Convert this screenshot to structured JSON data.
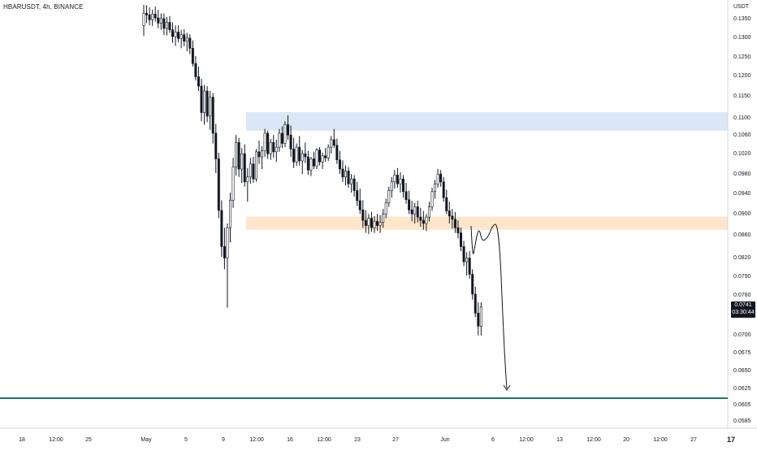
{
  "symbol": "HBARUSDT, 4h, BINANCE",
  "currency": "USDT",
  "price_badge": {
    "price": "0.0741",
    "countdown": "03:30:44"
  },
  "logo_text": "17",
  "colors": {
    "candle": "#131722",
    "resistance_zone": "#dbe7f6",
    "support_zone": "#fde6cb",
    "level_line": "#1a7a64",
    "drawing": "#131722",
    "axis_text": "#131722",
    "axis_line": "#d1d4dc"
  },
  "chart_data": {
    "type": "candlestick",
    "y_tick_labels": [
      "0.1350",
      "0.1300",
      "0.1250",
      "0.1200",
      "0.1150",
      "0.1100",
      "0.1060",
      "0.1020",
      "0.0980",
      "0.0940",
      "0.0900",
      "0.0860",
      "0.0820",
      "0.0790",
      "0.0760",
      "0.0730",
      "0.0700",
      "0.0675",
      "0.0650",
      "0.0625",
      "0.0605",
      "0.0585"
    ],
    "x_tick_labels": [
      "18",
      "12:00",
      "25",
      "May",
      "5",
      "9",
      "12:00",
      "16",
      "12:00",
      "23",
      "27",
      "Jun",
      "6",
      "12:00",
      "13",
      "12:00",
      "20",
      "12:00",
      "27"
    ],
    "zones": [
      {
        "name": "resistance",
        "from": 0.1068,
        "to": 0.1111
      },
      {
        "name": "support",
        "from": 0.0868,
        "to": 0.0893
      }
    ],
    "horizontal_line": 0.0612,
    "series": [
      {
        "values": [
          [
            0.133,
            0.1385,
            0.1302,
            0.1362
          ],
          [
            0.1362,
            0.1384,
            0.1336,
            0.1358
          ],
          [
            0.1358,
            0.1378,
            0.133,
            0.1345
          ],
          [
            0.1345,
            0.1372,
            0.1328,
            0.136
          ],
          [
            0.136,
            0.138,
            0.134,
            0.135
          ],
          [
            0.135,
            0.1371,
            0.1322,
            0.1336
          ],
          [
            0.1336,
            0.1362,
            0.1318,
            0.1348
          ],
          [
            0.1348,
            0.1362,
            0.1304,
            0.1322
          ],
          [
            0.1322,
            0.1352,
            0.1303,
            0.1338
          ],
          [
            0.1338,
            0.1355,
            0.131,
            0.1318
          ],
          [
            0.1318,
            0.1338,
            0.1284,
            0.13
          ],
          [
            0.13,
            0.133,
            0.1276,
            0.1312
          ],
          [
            0.1312,
            0.133,
            0.1285,
            0.1295
          ],
          [
            0.1295,
            0.1318,
            0.127,
            0.1305
          ],
          [
            0.1305,
            0.132,
            0.1275,
            0.1288
          ],
          [
            0.1288,
            0.131,
            0.1262,
            0.1296
          ],
          [
            0.1296,
            0.1306,
            0.1255,
            0.127
          ],
          [
            0.127,
            0.129,
            0.1222,
            0.123
          ],
          [
            0.123,
            0.125,
            0.1186,
            0.1195
          ],
          [
            0.1195,
            0.1222,
            0.116,
            0.1172
          ],
          [
            0.1172,
            0.119,
            0.109,
            0.111
          ],
          [
            0.111,
            0.1175,
            0.1082,
            0.116
          ],
          [
            0.116,
            0.1172,
            0.1088,
            0.1102
          ],
          [
            0.1102,
            0.116,
            0.107,
            0.1145
          ],
          [
            0.1145,
            0.1155,
            0.104,
            0.1062
          ],
          [
            0.1062,
            0.1084,
            0.098,
            0.1008
          ],
          [
            0.1008,
            0.102,
            0.089,
            0.0905
          ],
          [
            0.0905,
            0.0925,
            0.082,
            0.0838
          ],
          [
            0.0838,
            0.0872,
            0.08,
            0.0818
          ],
          [
            0.0818,
            0.088,
            0.074,
            0.0872
          ],
          [
            0.0872,
            0.094,
            0.0845,
            0.0925
          ],
          [
            0.0925,
            0.101,
            0.091,
            0.0992
          ],
          [
            0.0992,
            0.1058,
            0.0975,
            0.1042
          ],
          [
            0.1042,
            0.1052,
            0.0972,
            0.0988
          ],
          [
            0.0988,
            0.103,
            0.096,
            0.1018
          ],
          [
            0.1018,
            0.1038,
            0.0952,
            0.0962
          ],
          [
            0.0962,
            0.099,
            0.0922,
            0.0972
          ],
          [
            0.0972,
            0.101,
            0.0958,
            0.0998
          ],
          [
            0.0998,
            0.1012,
            0.096,
            0.0968
          ],
          [
            0.0968,
            0.1028,
            0.0962,
            0.1022
          ],
          [
            0.1022,
            0.1046,
            0.0998,
            0.1012
          ],
          [
            0.1012,
            0.1034,
            0.0988,
            0.1024
          ],
          [
            0.1024,
            0.1072,
            0.1012,
            0.1062
          ],
          [
            0.1062,
            0.1068,
            0.1008,
            0.1018
          ],
          [
            0.1018,
            0.105,
            0.1006,
            0.1042
          ],
          [
            0.1042,
            0.1058,
            0.101,
            0.1022
          ],
          [
            0.1022,
            0.1048,
            0.1002,
            0.1032
          ],
          [
            0.1032,
            0.1072,
            0.1022,
            0.1062
          ],
          [
            0.1062,
            0.1078,
            0.103,
            0.104
          ],
          [
            0.104,
            0.109,
            0.1032,
            0.1082
          ],
          [
            0.1082,
            0.1104,
            0.1048,
            0.1058
          ],
          [
            0.1058,
            0.108,
            0.1012,
            0.1028
          ],
          [
            0.1028,
            0.1052,
            0.099,
            0.1002
          ],
          [
            0.1002,
            0.104,
            0.0994,
            0.1032
          ],
          [
            0.1032,
            0.1056,
            0.0995,
            0.1004
          ],
          [
            0.1004,
            0.1026,
            0.0978,
            0.1018
          ],
          [
            0.1018,
            0.1042,
            0.1,
            0.1012
          ],
          [
            0.1012,
            0.1024,
            0.0976,
            0.0986
          ],
          [
            0.0986,
            0.1012,
            0.0974,
            0.1008
          ],
          [
            0.1008,
            0.1022,
            0.0988,
            0.0994
          ],
          [
            0.0994,
            0.103,
            0.0988,
            0.1026
          ],
          [
            0.1026,
            0.1032,
            0.0995,
            0.1002
          ],
          [
            0.1002,
            0.102,
            0.0988,
            0.1014
          ],
          [
            0.1014,
            0.103,
            0.1002,
            0.101
          ],
          [
            0.101,
            0.1038,
            0.1004,
            0.1032
          ],
          [
            0.1032,
            0.1056,
            0.1018,
            0.1048
          ],
          [
            0.1048,
            0.1072,
            0.103,
            0.1036
          ],
          [
            0.1036,
            0.105,
            0.0998,
            0.1006
          ],
          [
            0.1006,
            0.1024,
            0.0978,
            0.0988
          ],
          [
            0.0988,
            0.1005,
            0.0962,
            0.0972
          ],
          [
            0.0972,
            0.0995,
            0.0955,
            0.0984
          ],
          [
            0.0984,
            0.0992,
            0.095,
            0.0958
          ],
          [
            0.0958,
            0.0978,
            0.094,
            0.0968
          ],
          [
            0.0968,
            0.0976,
            0.0932,
            0.0944
          ],
          [
            0.0944,
            0.0962,
            0.0914,
            0.0924
          ],
          [
            0.0924,
            0.0948,
            0.0898,
            0.0906
          ],
          [
            0.0906,
            0.0925,
            0.0872,
            0.0886
          ],
          [
            0.0886,
            0.0905,
            0.0862,
            0.0876
          ],
          [
            0.0876,
            0.0898,
            0.086,
            0.089
          ],
          [
            0.089,
            0.0902,
            0.0864,
            0.0872
          ],
          [
            0.0872,
            0.0894,
            0.0862,
            0.0884
          ],
          [
            0.0884,
            0.0898,
            0.0866,
            0.0876
          ],
          [
            0.0876,
            0.0896,
            0.0862,
            0.0882
          ],
          [
            0.0882,
            0.0908,
            0.0872,
            0.0898
          ],
          [
            0.0898,
            0.0928,
            0.089,
            0.092
          ],
          [
            0.092,
            0.0952,
            0.0912,
            0.0944
          ],
          [
            0.0944,
            0.0972,
            0.093,
            0.0962
          ],
          [
            0.0962,
            0.0986,
            0.0948,
            0.0976
          ],
          [
            0.0976,
            0.099,
            0.095,
            0.0958
          ],
          [
            0.0958,
            0.0982,
            0.094,
            0.0968
          ],
          [
            0.0968,
            0.0976,
            0.093,
            0.0942
          ],
          [
            0.0942,
            0.096,
            0.0918,
            0.0926
          ],
          [
            0.0926,
            0.0944,
            0.0898,
            0.0906
          ],
          [
            0.0906,
            0.0924,
            0.0884,
            0.0898
          ],
          [
            0.0898,
            0.092,
            0.088,
            0.0912
          ],
          [
            0.0912,
            0.0924,
            0.0882,
            0.0892
          ],
          [
            0.0892,
            0.091,
            0.0874,
            0.0886
          ],
          [
            0.0886,
            0.0904,
            0.0868,
            0.088
          ],
          [
            0.088,
            0.0898,
            0.0866,
            0.0892
          ],
          [
            0.0892,
            0.0922,
            0.0884,
            0.0912
          ],
          [
            0.0912,
            0.095,
            0.0904,
            0.0942
          ],
          [
            0.0942,
            0.0966,
            0.0928,
            0.0958
          ],
          [
            0.0958,
            0.0988,
            0.095,
            0.0978
          ],
          [
            0.0978,
            0.0986,
            0.0952,
            0.0962
          ],
          [
            0.0962,
            0.0972,
            0.0922,
            0.093
          ],
          [
            0.093,
            0.0946,
            0.0898,
            0.0904
          ],
          [
            0.0904,
            0.0922,
            0.088,
            0.0894
          ],
          [
            0.0894,
            0.0908,
            0.087,
            0.0888
          ],
          [
            0.0888,
            0.0902,
            0.0862,
            0.0872
          ],
          [
            0.0872,
            0.0886,
            0.0852,
            0.0862
          ],
          [
            0.0862,
            0.0872,
            0.083,
            0.0838
          ],
          [
            0.0838,
            0.0848,
            0.0805,
            0.0812
          ],
          [
            0.0812,
            0.0828,
            0.079,
            0.0818
          ],
          [
            0.0818,
            0.083,
            0.0785,
            0.0792
          ],
          [
            0.0792,
            0.08,
            0.0752,
            0.076
          ],
          [
            0.076,
            0.0772,
            0.0726,
            0.0732
          ],
          [
            0.0732,
            0.0748,
            0.0698,
            0.0712
          ],
          [
            0.0712,
            0.0748,
            0.0698,
            0.0741
          ]
        ]
      }
    ]
  }
}
